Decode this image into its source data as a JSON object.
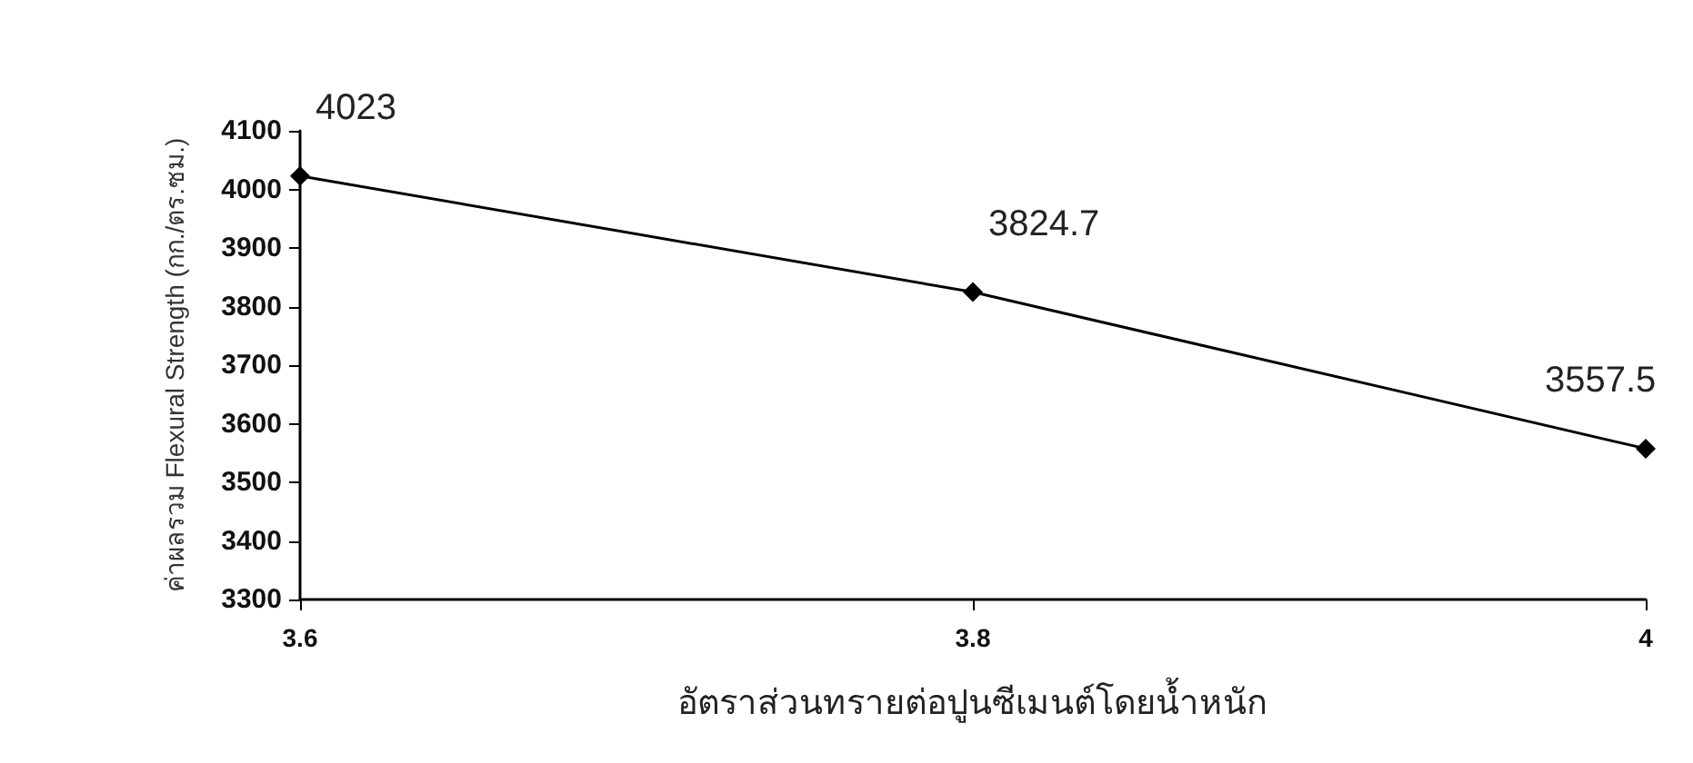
{
  "chart_data": {
    "type": "line",
    "xlabel": "อัตราส่วนทรายต่อปูนซีเมนต์โดยน้ำหนัก",
    "ylabel": "ค่าผลรวม Flexural Strength (กก./ตร.ซม.)",
    "x": [
      3.6,
      3.8,
      4
    ],
    "series": [
      {
        "color": "#000000",
        "values": [
          4023,
          3824.7,
          3557.5
        ]
      }
    ],
    "xlim": [
      3.6,
      4
    ],
    "xticks": [
      3.6,
      3.8,
      4
    ],
    "ylim": [
      3300,
      4100
    ],
    "yticks": [
      3300,
      3400,
      3500,
      3600,
      3700,
      3800,
      3900,
      4000,
      4100
    ],
    "marker": "diamond",
    "line_style": "solid",
    "data_labels": true
  }
}
